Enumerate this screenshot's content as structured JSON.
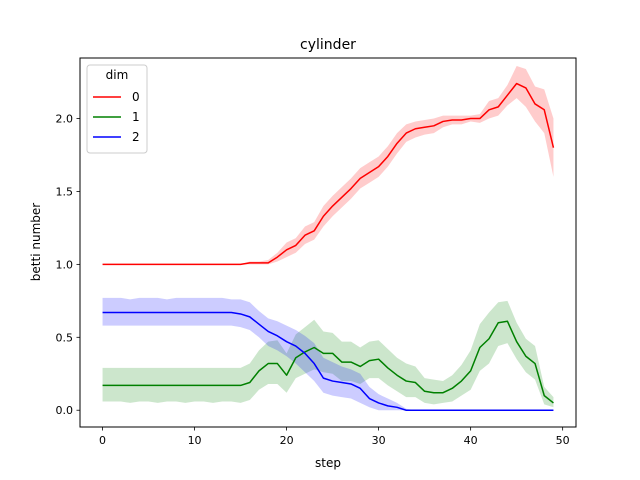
{
  "chart_data": {
    "type": "line",
    "title": "cylinder",
    "xlabel": "step",
    "ylabel": "betti number",
    "xlim": [
      -2.45,
      51.45
    ],
    "ylim": [
      -0.115,
      2.415
    ],
    "xticks": [
      0,
      10,
      20,
      30,
      40,
      50
    ],
    "yticks": [
      0.0,
      0.5,
      1.0,
      1.5,
      2.0
    ],
    "xtick_labels": [
      "0",
      "10",
      "20",
      "30",
      "40",
      "50"
    ],
    "ytick_labels": [
      "0.0",
      "0.5",
      "1.0",
      "1.5",
      "2.0"
    ],
    "grid": false,
    "legend": {
      "title": "dim",
      "position": "top-left"
    },
    "x": [
      0,
      1,
      2,
      3,
      4,
      5,
      6,
      7,
      8,
      9,
      10,
      11,
      12,
      13,
      14,
      15,
      16,
      17,
      18,
      19,
      20,
      21,
      22,
      23,
      24,
      25,
      26,
      27,
      28,
      29,
      30,
      31,
      32,
      33,
      34,
      35,
      36,
      37,
      38,
      39,
      40,
      41,
      42,
      43,
      44,
      45,
      46,
      47,
      48,
      49
    ],
    "series": [
      {
        "name": "0",
        "color": "#ff0000",
        "values": [
          1.0,
          1.0,
          1.0,
          1.0,
          1.0,
          1.0,
          1.0,
          1.0,
          1.0,
          1.0,
          1.0,
          1.0,
          1.0,
          1.0,
          1.0,
          1.0,
          1.01,
          1.01,
          1.01,
          1.05,
          1.1,
          1.13,
          1.2,
          1.23,
          1.33,
          1.4,
          1.46,
          1.52,
          1.59,
          1.63,
          1.67,
          1.74,
          1.83,
          1.9,
          1.93,
          1.94,
          1.95,
          1.98,
          1.99,
          1.99,
          2.0,
          2.0,
          2.06,
          2.08,
          2.16,
          2.24,
          2.21,
          2.1,
          2.06,
          1.8
        ],
        "lower": [
          1.0,
          1.0,
          1.0,
          1.0,
          1.0,
          1.0,
          1.0,
          1.0,
          1.0,
          1.0,
          1.0,
          1.0,
          1.0,
          1.0,
          1.0,
          1.0,
          1.0,
          1.0,
          1.0,
          1.02,
          1.05,
          1.08,
          1.14,
          1.17,
          1.26,
          1.33,
          1.39,
          1.45,
          1.52,
          1.56,
          1.6,
          1.67,
          1.76,
          1.84,
          1.87,
          1.89,
          1.9,
          1.94,
          1.96,
          1.96,
          1.98,
          1.97,
          2.0,
          2.02,
          2.09,
          2.14,
          2.08,
          1.98,
          1.9,
          1.6
        ],
        "upper": [
          1.0,
          1.0,
          1.0,
          1.0,
          1.0,
          1.0,
          1.0,
          1.0,
          1.0,
          1.0,
          1.0,
          1.0,
          1.0,
          1.0,
          1.0,
          1.0,
          1.02,
          1.02,
          1.03,
          1.08,
          1.15,
          1.18,
          1.26,
          1.29,
          1.4,
          1.47,
          1.53,
          1.59,
          1.66,
          1.7,
          1.74,
          1.81,
          1.9,
          1.96,
          1.98,
          1.99,
          2.0,
          2.02,
          2.02,
          2.02,
          2.02,
          2.03,
          2.12,
          2.14,
          2.23,
          2.36,
          2.34,
          2.22,
          2.2,
          2.0
        ]
      },
      {
        "name": "1",
        "color": "#008000",
        "values": [
          0.17,
          0.17,
          0.17,
          0.17,
          0.17,
          0.17,
          0.17,
          0.17,
          0.17,
          0.17,
          0.17,
          0.17,
          0.17,
          0.17,
          0.17,
          0.17,
          0.19,
          0.27,
          0.32,
          0.32,
          0.24,
          0.36,
          0.4,
          0.43,
          0.39,
          0.39,
          0.33,
          0.33,
          0.3,
          0.34,
          0.35,
          0.29,
          0.24,
          0.2,
          0.19,
          0.13,
          0.12,
          0.12,
          0.15,
          0.2,
          0.27,
          0.43,
          0.49,
          0.6,
          0.61,
          0.47,
          0.37,
          0.32,
          0.1,
          0.05
        ],
        "lower": [
          0.06,
          0.06,
          0.06,
          0.05,
          0.06,
          0.06,
          0.05,
          0.06,
          0.06,
          0.05,
          0.06,
          0.06,
          0.05,
          0.06,
          0.06,
          0.05,
          0.07,
          0.14,
          0.18,
          0.18,
          0.12,
          0.22,
          0.25,
          0.28,
          0.26,
          0.25,
          0.2,
          0.2,
          0.18,
          0.22,
          0.22,
          0.17,
          0.13,
          0.09,
          0.09,
          0.05,
          0.04,
          0.05,
          0.06,
          0.1,
          0.14,
          0.27,
          0.32,
          0.44,
          0.46,
          0.35,
          0.26,
          0.21,
          0.04,
          0.02
        ],
        "upper": [
          0.29,
          0.29,
          0.29,
          0.29,
          0.29,
          0.29,
          0.29,
          0.29,
          0.29,
          0.29,
          0.29,
          0.29,
          0.29,
          0.29,
          0.29,
          0.29,
          0.32,
          0.41,
          0.47,
          0.48,
          0.39,
          0.52,
          0.57,
          0.62,
          0.54,
          0.53,
          0.47,
          0.47,
          0.43,
          0.47,
          0.48,
          0.42,
          0.36,
          0.32,
          0.3,
          0.22,
          0.21,
          0.2,
          0.24,
          0.31,
          0.41,
          0.59,
          0.67,
          0.74,
          0.75,
          0.6,
          0.49,
          0.44,
          0.16,
          0.09
        ]
      },
      {
        "name": "2",
        "color": "#0000ff",
        "values": [
          0.67,
          0.67,
          0.67,
          0.67,
          0.67,
          0.67,
          0.67,
          0.67,
          0.67,
          0.67,
          0.67,
          0.67,
          0.67,
          0.67,
          0.67,
          0.66,
          0.64,
          0.59,
          0.54,
          0.51,
          0.47,
          0.44,
          0.39,
          0.32,
          0.22,
          0.2,
          0.19,
          0.18,
          0.15,
          0.08,
          0.05,
          0.03,
          0.02,
          0.0,
          0.0,
          0.0,
          0.0,
          0.0,
          0.0,
          0.0,
          0.0,
          0.0,
          0.0,
          0.0,
          0.0,
          0.0,
          0.0,
          0.0,
          0.0,
          0.0
        ],
        "lower": [
          0.58,
          0.58,
          0.58,
          0.58,
          0.58,
          0.58,
          0.58,
          0.58,
          0.58,
          0.58,
          0.58,
          0.58,
          0.58,
          0.58,
          0.58,
          0.57,
          0.55,
          0.5,
          0.44,
          0.41,
          0.37,
          0.32,
          0.26,
          0.2,
          0.12,
          0.1,
          0.09,
          0.08,
          0.05,
          0.02,
          0.0,
          0.0,
          0.0,
          0.0,
          0.0,
          0.0,
          0.0,
          0.0,
          0.0,
          0.0,
          0.0,
          0.0,
          0.0,
          0.0,
          0.0,
          0.0,
          0.0,
          0.0,
          0.0,
          0.0
        ],
        "upper": [
          0.77,
          0.77,
          0.77,
          0.76,
          0.77,
          0.77,
          0.77,
          0.76,
          0.77,
          0.77,
          0.77,
          0.77,
          0.77,
          0.77,
          0.76,
          0.76,
          0.74,
          0.68,
          0.63,
          0.61,
          0.58,
          0.55,
          0.51,
          0.46,
          0.36,
          0.33,
          0.3,
          0.28,
          0.25,
          0.16,
          0.11,
          0.08,
          0.05,
          0.01,
          0.0,
          0.0,
          0.0,
          0.0,
          0.0,
          0.0,
          0.0,
          0.0,
          0.0,
          0.0,
          0.0,
          0.0,
          0.0,
          0.0,
          0.0,
          0.0
        ]
      }
    ]
  }
}
